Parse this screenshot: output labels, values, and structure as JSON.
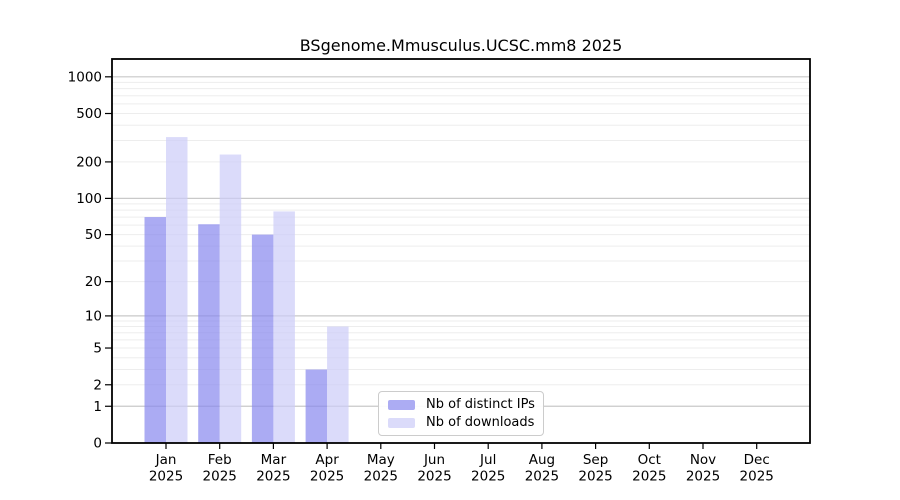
{
  "chart_data": {
    "type": "bar",
    "title": "BSgenome.Mmusculus.UCSC.mm8 2025",
    "categories": [
      "Jan",
      "Feb",
      "Mar",
      "Apr",
      "May",
      "Jun",
      "Jul",
      "Aug",
      "Sep",
      "Oct",
      "Nov",
      "Dec"
    ],
    "x_year_label": "2025",
    "series": [
      {
        "name": "Nb of distinct IPs",
        "color": "#8888ee",
        "values": [
          70,
          61,
          50,
          3,
          0,
          0,
          0,
          0,
          0,
          0,
          0,
          0
        ]
      },
      {
        "name": "Nb of downloads",
        "color": "#ccccf8",
        "values": [
          320,
          230,
          78,
          8,
          0,
          0,
          0,
          0,
          0,
          0,
          0,
          0
        ]
      }
    ],
    "y_scale": "log1p",
    "y_ticks": [
      0,
      1,
      2,
      5,
      10,
      20,
      50,
      100,
      200,
      500,
      1000
    ],
    "y_major_gridlines": [
      1,
      10,
      100,
      1000
    ],
    "ylim": [
      0,
      1400
    ],
    "grid": "horizontal",
    "legend_position": "bottom-center"
  },
  "colors": {
    "bar_ips": "#8888ee",
    "bar_downloads": "#ccccf8",
    "bar_opacity": "0.7",
    "grid_major": "#c9c9c9",
    "grid_minor": "#ededed",
    "spine": "#000000",
    "legend_border": "#cccccc"
  }
}
